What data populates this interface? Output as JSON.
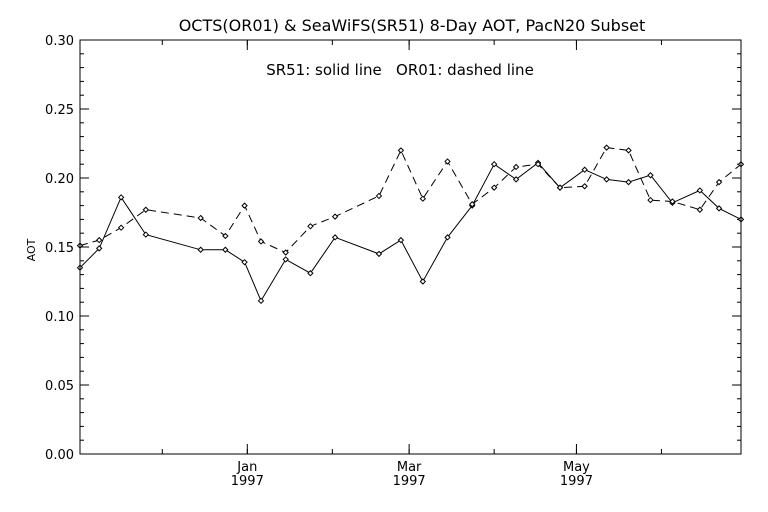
{
  "chart_data": {
    "type": "line",
    "title": "OCTS(OR01) & SeaWiFS(SR51) 8-Day AOT, PacN20 Subset",
    "annotation": "SR51: solid line   OR01: dashed line",
    "xlabel": "",
    "ylabel": "AOT",
    "ylim": [
      0,
      0.3
    ],
    "yticks": [
      "0.00",
      "0.05",
      "0.10",
      "0.15",
      "0.20",
      "0.25",
      "0.30"
    ],
    "xlim": [
      "1996-11-01",
      "1997-06-30"
    ],
    "xticks": [
      {
        "date": "1997-01-01",
        "month": "Jan",
        "year": "1997"
      },
      {
        "date": "1997-03-01",
        "month": "Mar",
        "year": "1997"
      },
      {
        "date": "1997-05-01",
        "month": "May",
        "year": "1997"
      }
    ],
    "grid": false,
    "series": [
      {
        "name": "SR51",
        "style": "solid",
        "color": "#000000",
        "points": [
          {
            "x": "1996-11-01",
            "y": 0.135
          },
          {
            "x": "1996-11-08",
            "y": 0.149
          },
          {
            "x": "1996-11-16",
            "y": 0.186
          },
          {
            "x": "1996-11-25",
            "y": 0.159
          },
          {
            "x": "1996-12-15",
            "y": 0.148
          },
          {
            "x": "1996-12-24",
            "y": 0.148
          },
          {
            "x": "1996-12-31",
            "y": 0.139
          },
          {
            "x": "1997-01-06",
            "y": 0.111
          },
          {
            "x": "1997-01-15",
            "y": 0.141
          },
          {
            "x": "1997-01-24",
            "y": 0.131
          },
          {
            "x": "1997-02-02",
            "y": 0.157
          },
          {
            "x": "1997-02-18",
            "y": 0.145
          },
          {
            "x": "1997-02-26",
            "y": 0.155
          },
          {
            "x": "1997-03-06",
            "y": 0.125
          },
          {
            "x": "1997-03-15",
            "y": 0.157
          },
          {
            "x": "1997-03-24",
            "y": 0.18
          },
          {
            "x": "1997-04-01",
            "y": 0.21
          },
          {
            "x": "1997-04-09",
            "y": 0.199
          },
          {
            "x": "1997-04-17",
            "y": 0.211
          },
          {
            "x": "1997-04-25",
            "y": 0.193
          },
          {
            "x": "1997-05-04",
            "y": 0.206
          },
          {
            "x": "1997-05-12",
            "y": 0.199
          },
          {
            "x": "1997-05-20",
            "y": 0.197
          },
          {
            "x": "1997-05-28",
            "y": 0.202
          },
          {
            "x": "1997-06-05",
            "y": 0.182
          },
          {
            "x": "1997-06-15",
            "y": 0.191
          },
          {
            "x": "1997-06-22",
            "y": 0.178
          },
          {
            "x": "1997-06-30",
            "y": 0.17
          }
        ]
      },
      {
        "name": "OR01",
        "style": "dashed",
        "color": "#000000",
        "points": [
          {
            "x": "1996-11-01",
            "y": 0.151
          },
          {
            "x": "1996-11-08",
            "y": 0.155
          },
          {
            "x": "1996-11-16",
            "y": 0.164
          },
          {
            "x": "1996-11-25",
            "y": 0.177
          },
          {
            "x": "1996-12-15",
            "y": 0.171
          },
          {
            "x": "1996-12-24",
            "y": 0.158
          },
          {
            "x": "1996-12-31",
            "y": 0.18
          },
          {
            "x": "1997-01-06",
            "y": 0.154
          },
          {
            "x": "1997-01-15",
            "y": 0.146
          },
          {
            "x": "1997-01-24",
            "y": 0.165
          },
          {
            "x": "1997-02-02",
            "y": 0.172
          },
          {
            "x": "1997-02-18",
            "y": 0.187
          },
          {
            "x": "1997-02-26",
            "y": 0.22
          },
          {
            "x": "1997-03-06",
            "y": 0.185
          },
          {
            "x": "1997-03-15",
            "y": 0.212
          },
          {
            "x": "1997-03-24",
            "y": 0.181
          },
          {
            "x": "1997-04-01",
            "y": 0.193
          },
          {
            "x": "1997-04-09",
            "y": 0.208
          },
          {
            "x": "1997-04-17",
            "y": 0.21
          },
          {
            "x": "1997-04-25",
            "y": 0.193
          },
          {
            "x": "1997-05-04",
            "y": 0.194
          },
          {
            "x": "1997-05-12",
            "y": 0.222
          },
          {
            "x": "1997-05-20",
            "y": 0.22
          },
          {
            "x": "1997-05-28",
            "y": 0.184
          },
          {
            "x": "1997-06-05",
            "y": 0.183
          },
          {
            "x": "1997-06-15",
            "y": 0.177
          },
          {
            "x": "1997-06-22",
            "y": 0.197
          },
          {
            "x": "1997-06-30",
            "y": 0.21
          }
        ]
      }
    ]
  }
}
